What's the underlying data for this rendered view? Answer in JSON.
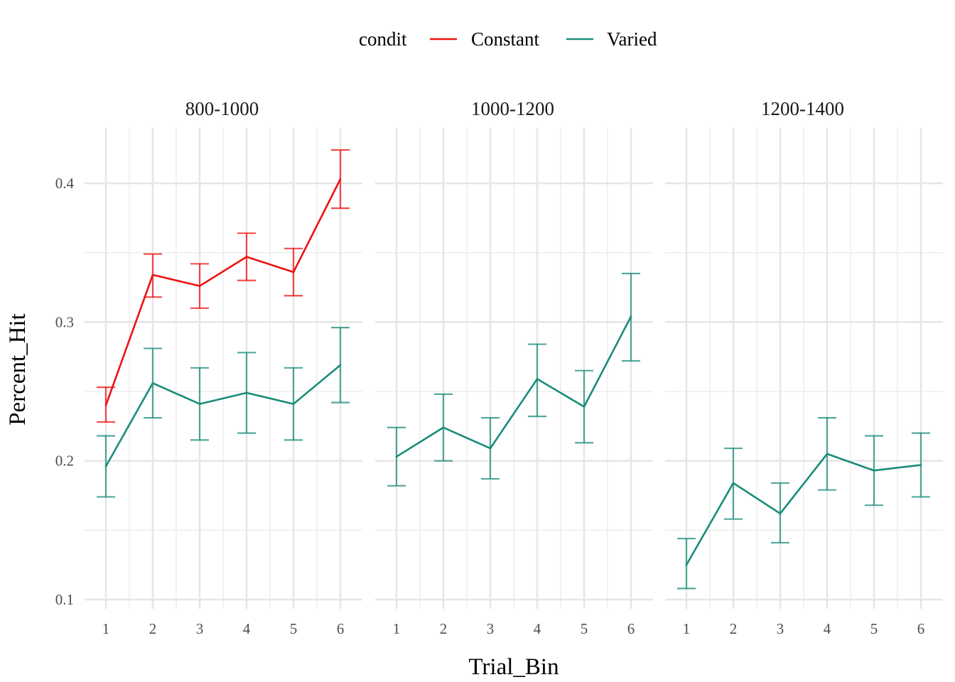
{
  "chart_data": {
    "type": "line",
    "facet_var": "",
    "facets": [
      "800-1000",
      "1000-1200",
      "1200-1400"
    ],
    "x": [
      1,
      2,
      3,
      4,
      5,
      6
    ],
    "xlabel": "Trial_Bin",
    "ylabel": "Percent_Hit",
    "ylim": [
      0.1,
      0.4
    ],
    "yticks": [
      "0.1",
      "0.2",
      "0.3",
      "0.4"
    ],
    "xticks": [
      "1",
      "2",
      "3",
      "4",
      "5",
      "6"
    ],
    "grid": true,
    "legend": {
      "title": "condit",
      "position": "top",
      "entries": [
        {
          "name": "Constant",
          "color": "#ee1111"
        },
        {
          "name": "Varied",
          "color": "#1b8c7a"
        }
      ]
    },
    "panels": [
      {
        "facet": "800-1000",
        "series": [
          {
            "name": "Constant",
            "color": "#ee1111",
            "values": [
              0.24,
              0.334,
              0.326,
              0.347,
              0.336,
              0.403
            ],
            "lower": [
              0.228,
              0.318,
              0.31,
              0.33,
              0.319,
              0.382
            ],
            "upper": [
              0.253,
              0.349,
              0.342,
              0.364,
              0.353,
              0.424
            ]
          },
          {
            "name": "Varied",
            "color": "#1b8c7a",
            "values": [
              0.196,
              0.256,
              0.241,
              0.249,
              0.241,
              0.269
            ],
            "lower": [
              0.174,
              0.231,
              0.215,
              0.22,
              0.215,
              0.242
            ],
            "upper": [
              0.218,
              0.281,
              0.267,
              0.278,
              0.267,
              0.296
            ]
          }
        ]
      },
      {
        "facet": "1000-1200",
        "series": [
          {
            "name": "Varied",
            "color": "#1b8c7a",
            "values": [
              0.203,
              0.224,
              0.209,
              0.259,
              0.239,
              0.304
            ],
            "lower": [
              0.182,
              0.2,
              0.187,
              0.232,
              0.213,
              0.272
            ],
            "upper": [
              0.224,
              0.248,
              0.231,
              0.284,
              0.265,
              0.335
            ]
          }
        ]
      },
      {
        "facet": "1200-1400",
        "series": [
          {
            "name": "Varied",
            "color": "#1b8c7a",
            "values": [
              0.125,
              0.184,
              0.162,
              0.205,
              0.193,
              0.197
            ],
            "lower": [
              0.108,
              0.158,
              0.141,
              0.179,
              0.168,
              0.174
            ],
            "upper": [
              0.144,
              0.209,
              0.184,
              0.231,
              0.218,
              0.22
            ]
          }
        ]
      }
    ]
  }
}
